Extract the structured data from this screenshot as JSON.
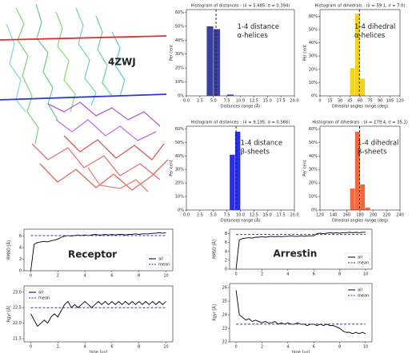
{
  "structure": {
    "label": "4ZWJ"
  },
  "chart_data": [
    {
      "type": "histogram",
      "title": "Histogram of distances : (x̄ = 5.485, σ = 0.394)",
      "xlabel": "Distances range (Å)",
      "ylabel": "Per cent",
      "annotation": [
        "1-4 distance",
        "α-helices"
      ],
      "bins": [
        3.75,
        5.0,
        6.25,
        7.5,
        8.75
      ],
      "values": [
        50,
        48,
        0,
        1
      ],
      "mean": 5.485,
      "color": "#3b3f9f",
      "xlim": [
        0,
        20
      ],
      "xticks": [
        {
          "value": 0,
          "label": "0.0"
        },
        2.5,
        {
          "value": 5,
          "label": "5.0"
        },
        7.5,
        {
          "value": 10,
          "label": "10.0"
        },
        12.5,
        {
          "value": 15,
          "label": "15.0"
        },
        17.5,
        {
          "value": 20,
          "label": "20.0"
        }
      ],
      "ylim": [
        0,
        62
      ],
      "yticks": [
        {
          "value": 0,
          "label": "0%"
        },
        {
          "value": 10,
          "label": "10%"
        },
        {
          "value": 20,
          "label": "20%"
        },
        {
          "value": 30,
          "label": "30%"
        },
        {
          "value": 40,
          "label": "40%"
        },
        {
          "value": 50,
          "label": "50%"
        },
        {
          "value": 60,
          "label": "60%"
        }
      ]
    },
    {
      "type": "histogram",
      "title": "Histogram of dihedrals : (x̄ = 59.1, σ = 7.0)",
      "xlabel": "Dihedral angles range (deg)",
      "ylabel": "Per cent",
      "annotation": [
        "1-4 dihedral",
        "α-helices"
      ],
      "bins": [
        45,
        52.5,
        60,
        67.5
      ],
      "values": [
        21,
        62,
        13
      ],
      "mean": 59.1,
      "color": "#f4d221",
      "xlim": [
        0,
        120
      ],
      "xticks": [
        0,
        15,
        30,
        45,
        60,
        75,
        90,
        105,
        120
      ],
      "ylim": [
        0,
        65
      ],
      "yticks": [
        {
          "value": 0,
          "label": "0%"
        },
        {
          "value": 10,
          "label": "10%"
        },
        {
          "value": 20,
          "label": "20%"
        },
        {
          "value": 30,
          "label": "30%"
        },
        {
          "value": 40,
          "label": "40%"
        },
        {
          "value": 50,
          "label": "50%"
        },
        {
          "value": 60,
          "label": "60%"
        }
      ]
    },
    {
      "type": "histogram",
      "title": "Histogram of distances : (x̄ = 9.195, σ = 0.566)",
      "xlabel": "Distances range (Å)",
      "ylabel": "Per cent",
      "annotation": [
        "1-4 distance",
        "β-sheets"
      ],
      "bins": [
        8.0,
        9.0,
        10.0
      ],
      "values": [
        41,
        58
      ],
      "mean": 9.195,
      "color": "#2a2df0",
      "xlim": [
        0,
        20
      ],
      "xticks": [
        {
          "value": 0,
          "label": "0.0"
        },
        2.5,
        {
          "value": 5,
          "label": "5.0"
        },
        7.5,
        {
          "value": 10,
          "label": "10.0"
        },
        12.5,
        {
          "value": 15,
          "label": "15.0"
        },
        17.5,
        {
          "value": 20,
          "label": "20.0"
        }
      ],
      "ylim": [
        0,
        62
      ],
      "yticks": [
        {
          "value": 0,
          "label": "0%"
        },
        {
          "value": 10,
          "label": "10%"
        },
        {
          "value": 20,
          "label": "20%"
        },
        {
          "value": 30,
          "label": "30%"
        },
        {
          "value": 40,
          "label": "40%"
        },
        {
          "value": 50,
          "label": "50%"
        },
        {
          "value": 60,
          "label": "60%"
        }
      ]
    },
    {
      "type": "histogram",
      "title": "Histogram of dihedrals : (x̄ = 179.4, σ = 35.2)",
      "xlabel": "Dihedral angles range (deg)",
      "ylabel": "Per cent",
      "annotation": [
        "1-4 dihedral",
        "β-sheets"
      ],
      "bins": [
        165,
        172.5,
        180,
        187.5,
        195
      ],
      "values": [
        16,
        58,
        19,
        2
      ],
      "mean": 179.4,
      "color": "#f0683c",
      "xlim": [
        120,
        240
      ],
      "xticks": [
        120,
        140,
        160,
        180,
        200,
        220,
        240
      ],
      "ylim": [
        0,
        62
      ],
      "yticks": [
        {
          "value": 0,
          "label": "0%"
        },
        {
          "value": 10,
          "label": "10%"
        },
        {
          "value": 20,
          "label": "20%"
        },
        {
          "value": 30,
          "label": "30%"
        },
        {
          "value": 40,
          "label": "40%"
        },
        {
          "value": 50,
          "label": "50%"
        },
        {
          "value": 60,
          "label": "60%"
        }
      ]
    },
    {
      "type": "line",
      "annotation": "Receptor",
      "ylabel": "RMSD [Å]",
      "legend": "lower right",
      "x": [
        0,
        0.25,
        0.5,
        0.75,
        1,
        1.25,
        1.5,
        1.75,
        2,
        2.25,
        2.5,
        2.75,
        3,
        3.25,
        3.5,
        3.75,
        4,
        4.25,
        4.5,
        4.75,
        5,
        5.25,
        5.5,
        5.75,
        6,
        6.25,
        6.5,
        6.75,
        7,
        7.25,
        7.5,
        7.75,
        8,
        8.25,
        8.5,
        8.75,
        9,
        9.25,
        9.5,
        9.75,
        10
      ],
      "series": [
        {
          "name": "all",
          "color": "#000000",
          "linestyle": "solid",
          "values": [
            0,
            4.6,
            4.9,
            5.0,
            5.1,
            5.0,
            5.2,
            5.3,
            5.5,
            5.8,
            6.0,
            6.1,
            6.0,
            6.1,
            6.2,
            6.1,
            6.2,
            6.1,
            6.2,
            6.3,
            6.2,
            6.2,
            6.3,
            6.2,
            6.3,
            6.2,
            6.3,
            6.3,
            6.2,
            6.3,
            6.3,
            6.4,
            6.3,
            6.4,
            6.4,
            6.4,
            6.5,
            6.5,
            6.6,
            6.5,
            6.6
          ]
        },
        {
          "name": "mean",
          "color": "#2b2bd9",
          "linestyle": "dashed",
          "x": [
            0,
            10
          ],
          "values": [
            6.1,
            6.1
          ]
        }
      ],
      "xlim": [
        -0.5,
        10.5
      ],
      "xticks": [
        0,
        2,
        4,
        6,
        8,
        10
      ],
      "ylim": [
        0,
        7.2
      ],
      "yticks": [
        0,
        2,
        4,
        6
      ]
    },
    {
      "type": "line",
      "ylabel": "Rgyr [Å]",
      "xlabel": "time [μs]",
      "legend": "upper left",
      "x": [
        0,
        0.25,
        0.5,
        0.75,
        1,
        1.25,
        1.5,
        1.75,
        2,
        2.25,
        2.5,
        2.75,
        3,
        3.25,
        3.5,
        3.75,
        4,
        4.25,
        4.5,
        4.75,
        5,
        5.25,
        5.5,
        5.75,
        6,
        6.25,
        6.5,
        6.75,
        7,
        7.25,
        7.5,
        7.75,
        8,
        8.25,
        8.5,
        8.75,
        9,
        9.25,
        9.5,
        9.75,
        10
      ],
      "series": [
        {
          "name": "all",
          "color": "#000000",
          "linestyle": "solid",
          "values": [
            22.3,
            22.1,
            21.9,
            22.0,
            22.1,
            22.0,
            22.2,
            22.3,
            22.2,
            22.4,
            22.6,
            22.7,
            22.5,
            22.6,
            22.5,
            22.6,
            22.7,
            22.6,
            22.5,
            22.6,
            22.7,
            22.6,
            22.7,
            22.6,
            22.7,
            22.6,
            22.7,
            22.6,
            22.7,
            22.6,
            22.7,
            22.6,
            22.7,
            22.6,
            22.7,
            22.6,
            22.7,
            22.6,
            22.7,
            22.6,
            22.7
          ]
        },
        {
          "name": "mean",
          "color": "#2b2bd9",
          "linestyle": "dashed",
          "x": [
            0,
            10
          ],
          "values": [
            22.5,
            22.5
          ]
        }
      ],
      "xlim": [
        -0.5,
        10.5
      ],
      "xticks": [
        0,
        2,
        4,
        6,
        8,
        10
      ],
      "ylim": [
        21.4,
        23.2
      ],
      "yticks": [
        21.5,
        {
          "value": 22,
          "label": "22.0"
        },
        22.5,
        {
          "value": 23,
          "label": "23.0"
        }
      ]
    },
    {
      "type": "line",
      "annotation": "Arrestin",
      "ylabel": "RMSD [Å]",
      "legend": "lower right",
      "x": [
        0,
        0.25,
        0.5,
        0.75,
        1,
        1.25,
        1.5,
        1.75,
        2,
        2.25,
        2.5,
        2.75,
        3,
        3.25,
        3.5,
        3.75,
        4,
        4.25,
        4.5,
        4.75,
        5,
        5.25,
        5.5,
        5.75,
        6,
        6.25,
        6.5,
        6.75,
        7,
        7.25,
        7.5,
        7.75,
        8,
        8.25,
        8.5,
        8.75,
        9,
        9.25,
        9.5,
        9.75,
        10
      ],
      "series": [
        {
          "name": "all",
          "color": "#000000",
          "linestyle": "solid",
          "values": [
            0,
            6.6,
            6.9,
            7.0,
            7.1,
            7.0,
            7.2,
            7.2,
            7.3,
            7.2,
            7.3,
            7.4,
            7.3,
            7.4,
            7.3,
            7.4,
            7.4,
            7.5,
            7.4,
            7.4,
            7.5,
            7.4,
            7.5,
            7.5,
            7.5,
            8.0,
            8.1,
            8.0,
            8.1,
            8.2,
            8.1,
            8.2,
            8.1,
            8.2,
            8.2,
            8.3,
            8.2,
            8.3,
            8.2,
            8.3,
            8.3
          ]
        },
        {
          "name": "mean",
          "color": "#2b2bd9",
          "linestyle": "dashed",
          "x": [
            0,
            10
          ],
          "values": [
            7.8,
            7.8
          ]
        }
      ],
      "xlim": [
        -0.5,
        10.5
      ],
      "xticks": [
        0,
        2,
        4,
        6,
        8,
        10
      ],
      "ylim": [
        0,
        9
      ],
      "yticks": [
        0,
        2,
        4,
        6,
        8
      ]
    },
    {
      "type": "line",
      "ylabel": "Rgyr [Å]",
      "xlabel": "time [μs]",
      "legend": "upper right",
      "x": [
        0,
        0.25,
        0.5,
        0.75,
        1,
        1.25,
        1.5,
        1.75,
        2,
        2.25,
        2.5,
        2.75,
        3,
        3.25,
        3.5,
        3.75,
        4,
        4.25,
        4.5,
        4.75,
        5,
        5.25,
        5.5,
        5.75,
        6,
        6.25,
        6.5,
        6.75,
        7,
        7.25,
        7.5,
        7.75,
        8,
        8.25,
        8.5,
        8.75,
        9,
        9.25,
        9.5,
        9.75,
        10
      ],
      "series": [
        {
          "name": "all",
          "color": "#000000",
          "linestyle": "solid",
          "values": [
            25.8,
            24.0,
            23.8,
            23.6,
            23.7,
            23.5,
            23.6,
            23.5,
            23.4,
            23.5,
            23.4,
            23.4,
            23.5,
            23.3,
            23.4,
            23.3,
            23.4,
            23.3,
            23.3,
            23.4,
            23.3,
            23.3,
            23.2,
            23.3,
            23.3,
            23.2,
            23.3,
            23.2,
            23.3,
            23.2,
            23.2,
            23.1,
            23.0,
            22.8,
            22.7,
            22.7,
            22.6,
            22.7,
            22.6,
            22.7,
            22.6
          ]
        },
        {
          "name": "mean",
          "color": "#2b2bd9",
          "linestyle": "dashed",
          "x": [
            0,
            10
          ],
          "values": [
            23.3,
            23.3
          ]
        }
      ],
      "xlim": [
        -0.5,
        10.5
      ],
      "xticks": [
        0,
        2,
        4,
        6,
        8,
        10
      ],
      "ylim": [
        22,
        26.3
      ],
      "yticks": [
        22,
        23,
        24,
        25,
        26
      ]
    }
  ]
}
